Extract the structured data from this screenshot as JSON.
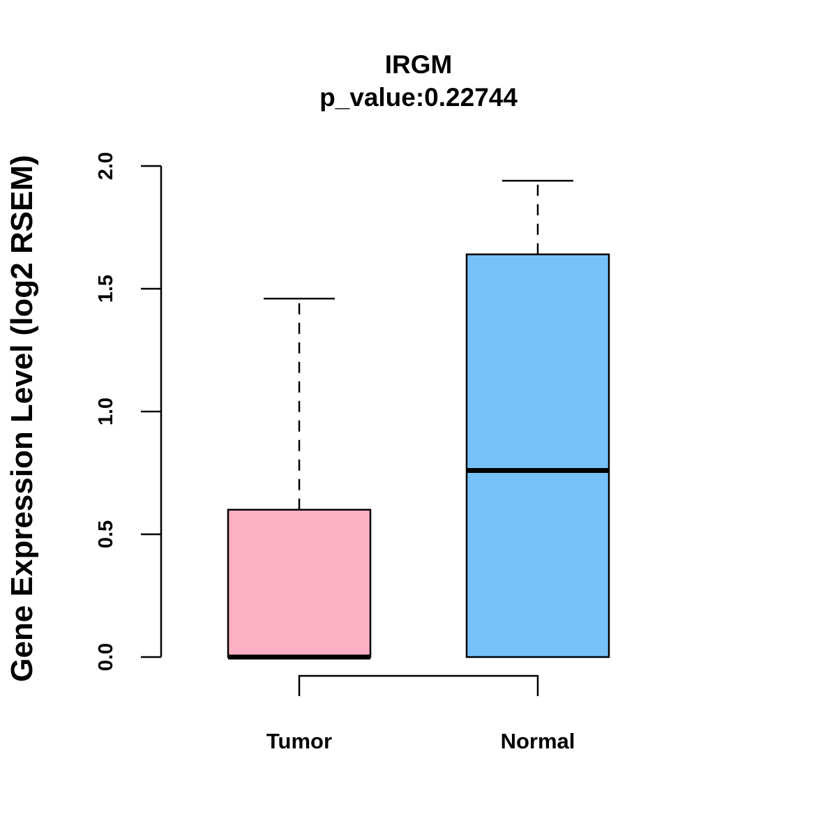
{
  "chart_data": {
    "type": "boxplot",
    "title": "IRGM",
    "subtitle": "p_value:0.22744",
    "xlabel": "",
    "ylabel": "Gene Expression Level (log2 RSEM)",
    "ylim": [
      0,
      2.0
    ],
    "yticks": [
      "0.0",
      "0.5",
      "1.0",
      "1.5",
      "2.0"
    ],
    "grid": false,
    "categories": [
      "Tumor",
      "Normal"
    ],
    "boxes": [
      {
        "name": "Tumor",
        "min": 0.0,
        "q1": 0.0,
        "median": 0.0,
        "q3": 0.6,
        "max": 1.46,
        "color": "#FCB1C3"
      },
      {
        "name": "Normal",
        "min": 0.0,
        "q1": 0.0,
        "median": 0.76,
        "q3": 1.64,
        "max": 1.94,
        "color": "#76C1F7"
      }
    ],
    "comparison_bracket": [
      "Tumor",
      "Normal"
    ]
  }
}
